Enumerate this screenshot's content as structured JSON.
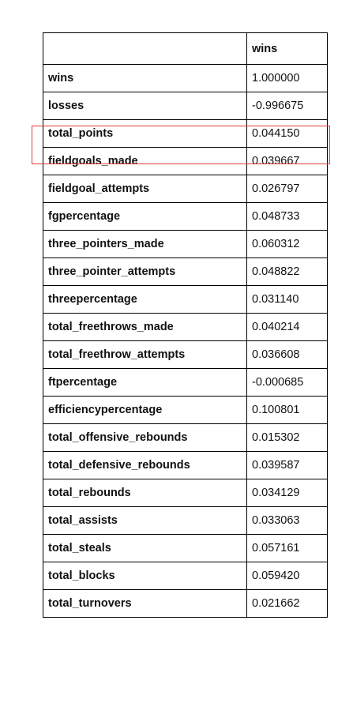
{
  "table": {
    "corner_label": "",
    "column_header": "wins",
    "rows": [
      {
        "label": "wins",
        "value": "1.000000"
      },
      {
        "label": "losses",
        "value": "-0.996675"
      },
      {
        "label": "total_points",
        "value": "0.044150"
      },
      {
        "label": "fieldgoals_made",
        "value": "0.039667"
      },
      {
        "label": "fieldgoal_attempts",
        "value": "0.026797"
      },
      {
        "label": "fgpercentage",
        "value": "0.048733"
      },
      {
        "label": "three_pointers_made",
        "value": "0.060312"
      },
      {
        "label": "three_pointer_attempts",
        "value": "0.048822"
      },
      {
        "label": "threepercentage",
        "value": "0.031140"
      },
      {
        "label": "total_freethrows_made",
        "value": "0.040214"
      },
      {
        "label": "total_freethrow_attempts",
        "value": "0.036608"
      },
      {
        "label": "ftpercentage",
        "value": "-0.000685"
      },
      {
        "label": "efficiencypercentage",
        "value": "0.100801"
      },
      {
        "label": "total_offensive_rebounds",
        "value": "0.015302"
      },
      {
        "label": "total_defensive_rebounds",
        "value": "0.039587"
      },
      {
        "label": "total_rebounds",
        "value": "0.034129"
      },
      {
        "label": "total_assists",
        "value": "0.033063"
      },
      {
        "label": "total_steals",
        "value": "0.057161"
      },
      {
        "label": "total_blocks",
        "value": "0.059420"
      },
      {
        "label": "total_turnovers",
        "value": "0.021662"
      }
    ]
  },
  "highlight": {
    "row_label": "total_points",
    "color": "#e23a3a"
  }
}
